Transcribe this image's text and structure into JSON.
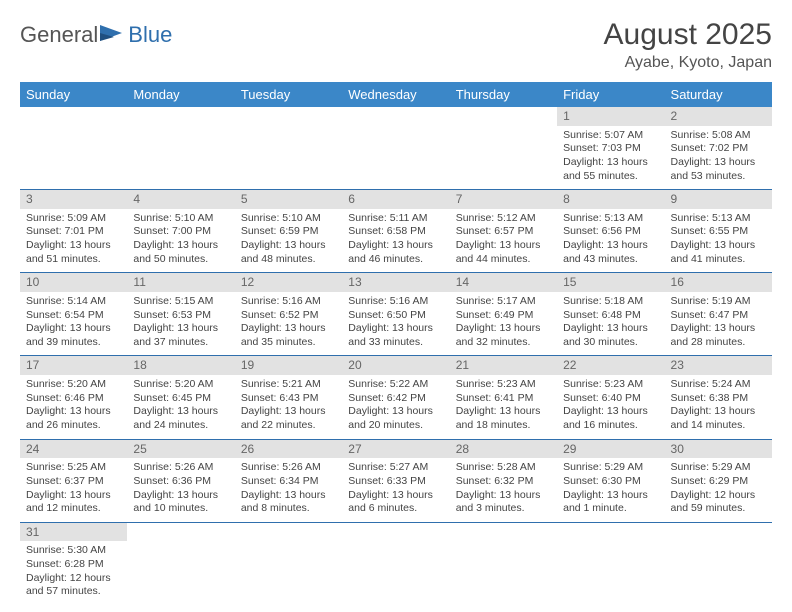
{
  "logo": {
    "text1": "General",
    "text2": "Blue"
  },
  "title": "August 2025",
  "location": "Ayabe, Kyoto, Japan",
  "colors": {
    "header_bg": "#3b87c8",
    "header_text": "#ffffff",
    "rule": "#2f6fad",
    "numstrip_bg": "#e2e2e2",
    "text": "#444444"
  },
  "weekdays": [
    "Sunday",
    "Monday",
    "Tuesday",
    "Wednesday",
    "Thursday",
    "Friday",
    "Saturday"
  ],
  "weeks": [
    [
      null,
      null,
      null,
      null,
      null,
      {
        "n": "1",
        "sunrise": "5:07 AM",
        "sunset": "7:03 PM",
        "daylight": "13 hours and 55 minutes."
      },
      {
        "n": "2",
        "sunrise": "5:08 AM",
        "sunset": "7:02 PM",
        "daylight": "13 hours and 53 minutes."
      }
    ],
    [
      {
        "n": "3",
        "sunrise": "5:09 AM",
        "sunset": "7:01 PM",
        "daylight": "13 hours and 51 minutes."
      },
      {
        "n": "4",
        "sunrise": "5:10 AM",
        "sunset": "7:00 PM",
        "daylight": "13 hours and 50 minutes."
      },
      {
        "n": "5",
        "sunrise": "5:10 AM",
        "sunset": "6:59 PM",
        "daylight": "13 hours and 48 minutes."
      },
      {
        "n": "6",
        "sunrise": "5:11 AM",
        "sunset": "6:58 PM",
        "daylight": "13 hours and 46 minutes."
      },
      {
        "n": "7",
        "sunrise": "5:12 AM",
        "sunset": "6:57 PM",
        "daylight": "13 hours and 44 minutes."
      },
      {
        "n": "8",
        "sunrise": "5:13 AM",
        "sunset": "6:56 PM",
        "daylight": "13 hours and 43 minutes."
      },
      {
        "n": "9",
        "sunrise": "5:13 AM",
        "sunset": "6:55 PM",
        "daylight": "13 hours and 41 minutes."
      }
    ],
    [
      {
        "n": "10",
        "sunrise": "5:14 AM",
        "sunset": "6:54 PM",
        "daylight": "13 hours and 39 minutes."
      },
      {
        "n": "11",
        "sunrise": "5:15 AM",
        "sunset": "6:53 PM",
        "daylight": "13 hours and 37 minutes."
      },
      {
        "n": "12",
        "sunrise": "5:16 AM",
        "sunset": "6:52 PM",
        "daylight": "13 hours and 35 minutes."
      },
      {
        "n": "13",
        "sunrise": "5:16 AM",
        "sunset": "6:50 PM",
        "daylight": "13 hours and 33 minutes."
      },
      {
        "n": "14",
        "sunrise": "5:17 AM",
        "sunset": "6:49 PM",
        "daylight": "13 hours and 32 minutes."
      },
      {
        "n": "15",
        "sunrise": "5:18 AM",
        "sunset": "6:48 PM",
        "daylight": "13 hours and 30 minutes."
      },
      {
        "n": "16",
        "sunrise": "5:19 AM",
        "sunset": "6:47 PM",
        "daylight": "13 hours and 28 minutes."
      }
    ],
    [
      {
        "n": "17",
        "sunrise": "5:20 AM",
        "sunset": "6:46 PM",
        "daylight": "13 hours and 26 minutes."
      },
      {
        "n": "18",
        "sunrise": "5:20 AM",
        "sunset": "6:45 PM",
        "daylight": "13 hours and 24 minutes."
      },
      {
        "n": "19",
        "sunrise": "5:21 AM",
        "sunset": "6:43 PM",
        "daylight": "13 hours and 22 minutes."
      },
      {
        "n": "20",
        "sunrise": "5:22 AM",
        "sunset": "6:42 PM",
        "daylight": "13 hours and 20 minutes."
      },
      {
        "n": "21",
        "sunrise": "5:23 AM",
        "sunset": "6:41 PM",
        "daylight": "13 hours and 18 minutes."
      },
      {
        "n": "22",
        "sunrise": "5:23 AM",
        "sunset": "6:40 PM",
        "daylight": "13 hours and 16 minutes."
      },
      {
        "n": "23",
        "sunrise": "5:24 AM",
        "sunset": "6:38 PM",
        "daylight": "13 hours and 14 minutes."
      }
    ],
    [
      {
        "n": "24",
        "sunrise": "5:25 AM",
        "sunset": "6:37 PM",
        "daylight": "13 hours and 12 minutes."
      },
      {
        "n": "25",
        "sunrise": "5:26 AM",
        "sunset": "6:36 PM",
        "daylight": "13 hours and 10 minutes."
      },
      {
        "n": "26",
        "sunrise": "5:26 AM",
        "sunset": "6:34 PM",
        "daylight": "13 hours and 8 minutes."
      },
      {
        "n": "27",
        "sunrise": "5:27 AM",
        "sunset": "6:33 PM",
        "daylight": "13 hours and 6 minutes."
      },
      {
        "n": "28",
        "sunrise": "5:28 AM",
        "sunset": "6:32 PM",
        "daylight": "13 hours and 3 minutes."
      },
      {
        "n": "29",
        "sunrise": "5:29 AM",
        "sunset": "6:30 PM",
        "daylight": "13 hours and 1 minute."
      },
      {
        "n": "30",
        "sunrise": "5:29 AM",
        "sunset": "6:29 PM",
        "daylight": "12 hours and 59 minutes."
      }
    ],
    [
      {
        "n": "31",
        "sunrise": "5:30 AM",
        "sunset": "6:28 PM",
        "daylight": "12 hours and 57 minutes."
      },
      null,
      null,
      null,
      null,
      null,
      null
    ]
  ],
  "labels": {
    "sunrise": "Sunrise: ",
    "sunset": "Sunset: ",
    "daylight": "Daylight: "
  }
}
